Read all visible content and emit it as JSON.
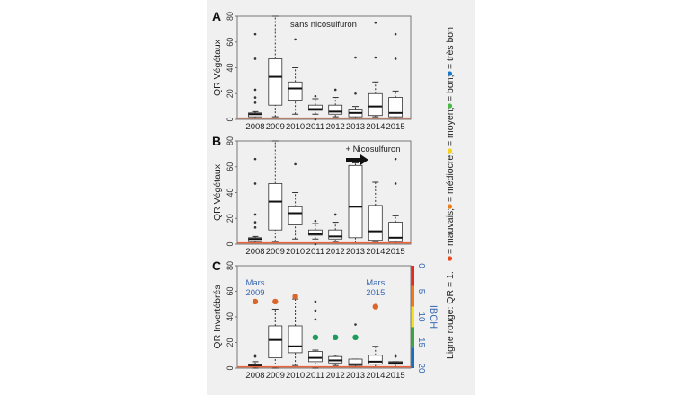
{
  "chart_data": [
    {
      "type": "boxplot",
      "panel_label": "A",
      "annotation": "sans nicosulfuron",
      "ylabel": "QR Végétaux",
      "ylim": [
        0,
        80
      ],
      "yticks": [
        "0",
        "20",
        "40",
        "60",
        "80"
      ],
      "categories": [
        "2008",
        "2009",
        "2010",
        "2011",
        "2012",
        "2013",
        "2014",
        "2015"
      ],
      "reference_line": {
        "value": 1,
        "color": "#e8643c"
      },
      "boxes": [
        {
          "low": 1,
          "q1": 2,
          "median": 4,
          "q3": 5,
          "high": 6,
          "outliers": [
            13,
            17,
            23,
            47,
            66
          ]
        },
        {
          "low": 2,
          "q1": 11,
          "median": 33,
          "q3": 47,
          "high": 80,
          "outliers": []
        },
        {
          "low": 4,
          "q1": 15,
          "median": 24,
          "q3": 29,
          "high": 40,
          "outliers": [
            62
          ]
        },
        {
          "low": 4,
          "q1": 7,
          "median": 8,
          "q3": 11,
          "high": 16,
          "outliers": [
            0,
            18
          ]
        },
        {
          "low": 2,
          "q1": 4,
          "median": 6,
          "q3": 11,
          "high": 17,
          "outliers": [
            23
          ]
        },
        {
          "low": 1,
          "q1": 2,
          "median": 5,
          "q3": 8,
          "high": 10,
          "outliers": [
            20,
            48
          ]
        },
        {
          "low": 2,
          "q1": 3,
          "median": 10,
          "q3": 20,
          "high": 29,
          "outliers": [
            48,
            75
          ]
        },
        {
          "low": 1,
          "q1": 2,
          "median": 5,
          "q3": 17,
          "high": 22,
          "outliers": [
            47,
            66
          ]
        }
      ]
    },
    {
      "type": "boxplot",
      "panel_label": "B",
      "annotation": "+ Nicosulfuron",
      "annotation_arrow": "arrow-right-icon",
      "ylabel": "QR Végétaux",
      "ylim": [
        0,
        80
      ],
      "yticks": [
        "0",
        "20",
        "40",
        "60",
        "80"
      ],
      "categories": [
        "2008",
        "2009",
        "2010",
        "2011",
        "2012",
        "2013",
        "2014",
        "2015"
      ],
      "reference_line": {
        "value": 1,
        "color": "#e8643c"
      },
      "boxes": [
        {
          "low": 1,
          "q1": 2,
          "median": 4,
          "q3": 5,
          "high": 6,
          "outliers": [
            13,
            17,
            23,
            47,
            66
          ]
        },
        {
          "low": 2,
          "q1": 11,
          "median": 33,
          "q3": 47,
          "high": 80,
          "outliers": []
        },
        {
          "low": 4,
          "q1": 15,
          "median": 24,
          "q3": 29,
          "high": 40,
          "outliers": [
            62
          ]
        },
        {
          "low": 4,
          "q1": 7,
          "median": 8,
          "q3": 11,
          "high": 16,
          "outliers": [
            0,
            18
          ]
        },
        {
          "low": 2,
          "q1": 4,
          "median": 6,
          "q3": 11,
          "high": 17,
          "outliers": [
            23
          ]
        },
        {
          "low": 1,
          "q1": 5,
          "median": 29,
          "q3": 61,
          "high": 63,
          "outliers": []
        },
        {
          "low": 2,
          "q1": 3,
          "median": 10,
          "q3": 30,
          "high": 48,
          "outliers": []
        },
        {
          "low": 1,
          "q1": 2,
          "median": 5,
          "q3": 17,
          "high": 22,
          "outliers": [
            47,
            66
          ]
        }
      ]
    },
    {
      "type": "boxplot",
      "panel_label": "C",
      "ylabel": "QR Invertébrés",
      "ylim": [
        0,
        80
      ],
      "yticks": [
        "0",
        "20",
        "40",
        "60",
        "80"
      ],
      "categories": [
        "2008",
        "2009",
        "2010",
        "2011",
        "2012",
        "2013",
        "2014",
        "2015"
      ],
      "reference_line": {
        "value": 1,
        "color": "#e8643c"
      },
      "annotations": [
        "Mars 2009",
        "Mars 2015"
      ],
      "annotation_lines": [
        [
          "Mars",
          "2009"
        ],
        [
          "Mars",
          "2015"
        ]
      ],
      "right_axis": {
        "label": "IBCH",
        "ylim": [
          20,
          0
        ],
        "yticks": [
          "0",
          "5",
          "10",
          "15",
          "20"
        ],
        "color_bands": [
          {
            "from": 0,
            "to": 4,
            "color": "#e32b1f"
          },
          {
            "from": 4,
            "to": 8,
            "color": "#ee7a1a"
          },
          {
            "from": 8,
            "to": 12,
            "color": "#f3e21c"
          },
          {
            "from": 12,
            "to": 16,
            "color": "#3aa545"
          },
          {
            "from": 16,
            "to": 20,
            "color": "#1a6fbd"
          }
        ]
      },
      "boxes": [
        {
          "low": 0,
          "q1": 1,
          "median": 2,
          "q3": 3,
          "high": 5,
          "outliers": [
            9,
            10
          ]
        },
        {
          "low": 0,
          "q1": 8,
          "median": 22,
          "q3": 33,
          "high": 46,
          "outliers": []
        },
        {
          "low": 2,
          "q1": 12,
          "median": 17,
          "q3": 33,
          "high": 54,
          "outliers": []
        },
        {
          "low": 0,
          "q1": 5,
          "median": 8,
          "q3": 13,
          "high": 14,
          "outliers": [
            38,
            45,
            52
          ]
        },
        {
          "low": 2,
          "q1": 4,
          "median": 6,
          "q3": 9,
          "high": 10,
          "outliers": []
        },
        {
          "low": 1,
          "q1": 2,
          "median": 3,
          "q3": 7,
          "high": 7,
          "outliers": [
            34
          ]
        },
        {
          "low": 1,
          "q1": 3,
          "median": 5,
          "q3": 10,
          "high": 17,
          "outliers": []
        },
        {
          "low": 1,
          "q1": 3,
          "median": 4,
          "q3": 5,
          "high": 5,
          "outliers": [
            9,
            10
          ]
        }
      ],
      "ibch_points": [
        {
          "year": "2008",
          "value": 52,
          "color": "#d9662a"
        },
        {
          "year": "2009",
          "value": 52,
          "color": "#d9662a"
        },
        {
          "year": "2010",
          "value": 56,
          "color": "#d9662a"
        },
        {
          "year": "2011",
          "value": 24,
          "color": "#1e9a5a"
        },
        {
          "year": "2012",
          "value": 24,
          "color": "#1e9a5a"
        },
        {
          "year": "2013",
          "value": 24,
          "color": "#1e9a5a"
        },
        {
          "year": "2014",
          "value": 48,
          "color": "#d9662a"
        }
      ]
    }
  ],
  "legend": {
    "prefix": "Ligne rouge: QR = 1.",
    "items": [
      {
        "label": "= mauvais;",
        "color": "#e84a1c"
      },
      {
        "label": "= médiocre;",
        "color": "#f07e1a"
      },
      {
        "label": "= moyen;",
        "color": "#f3d21c"
      },
      {
        "label": "= bon;",
        "color": "#4cb848"
      },
      {
        "label": "= très bon",
        "color": "#1a78c8"
      }
    ]
  }
}
